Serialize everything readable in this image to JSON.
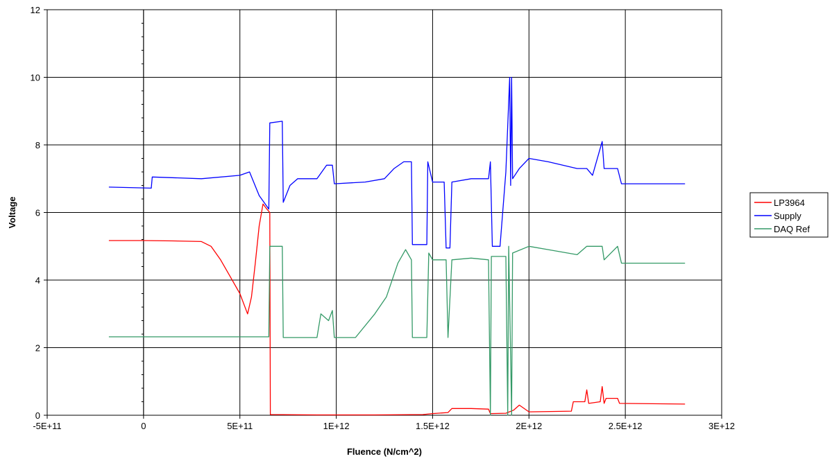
{
  "chart_data": {
    "type": "line",
    "title": "",
    "xlabel": "Fluence (N/cm^2)",
    "ylabel": "Voltage",
    "xlim": [
      -500000000000,
      3000000000000
    ],
    "ylim": [
      0,
      12
    ],
    "x_ticks": [
      -500000000000,
      0,
      500000000000,
      1000000000000,
      1500000000000,
      2000000000000,
      2500000000000,
      3000000000000
    ],
    "x_tick_labels": [
      "-5E+11",
      "0",
      "5E+11",
      "1E+12",
      "1.5E+12",
      "2E+12",
      "2.5E+12",
      "3E+12"
    ],
    "y_ticks": [
      0,
      2,
      4,
      6,
      8,
      10,
      12
    ],
    "y_tick_labels": [
      "0",
      "2",
      "4",
      "6",
      "8",
      "10",
      "12"
    ],
    "grid": true,
    "legend_position": "right",
    "series": [
      {
        "name": "LP3964",
        "color": "#ff0000",
        "points": [
          [
            -180000000000,
            5.17
          ],
          [
            0,
            5.17
          ],
          [
            150000000000,
            5.16
          ],
          [
            300000000000,
            5.14
          ],
          [
            350000000000,
            5.0
          ],
          [
            400000000000,
            4.6
          ],
          [
            450000000000,
            4.1
          ],
          [
            500000000000,
            3.6
          ],
          [
            540000000000,
            3.0
          ],
          [
            560000000000,
            3.5
          ],
          [
            580000000000,
            4.5
          ],
          [
            600000000000,
            5.6
          ],
          [
            620000000000,
            6.25
          ],
          [
            640000000000,
            6.1
          ],
          [
            655000000000,
            6.0
          ],
          [
            658000000000,
            0.02
          ],
          [
            900000000000,
            0.01
          ],
          [
            1200000000000,
            0.01
          ],
          [
            1450000000000,
            0.02
          ],
          [
            1500000000000,
            0.05
          ],
          [
            1580000000000,
            0.08
          ],
          [
            1600000000000,
            0.2
          ],
          [
            1700000000000,
            0.2
          ],
          [
            1790000000000,
            0.18
          ],
          [
            1800000000000,
            0.05
          ],
          [
            1880000000000,
            0.06
          ],
          [
            1920000000000,
            0.15
          ],
          [
            1950000000000,
            0.3
          ],
          [
            2000000000000,
            0.1
          ],
          [
            2220000000000,
            0.12
          ],
          [
            2230000000000,
            0.4
          ],
          [
            2290000000000,
            0.4
          ],
          [
            2300000000000,
            0.75
          ],
          [
            2310000000000,
            0.35
          ],
          [
            2370000000000,
            0.4
          ],
          [
            2380000000000,
            0.85
          ],
          [
            2390000000000,
            0.35
          ],
          [
            2400000000000,
            0.5
          ],
          [
            2460000000000,
            0.5
          ],
          [
            2470000000000,
            0.35
          ],
          [
            2810000000000,
            0.33
          ]
        ]
      },
      {
        "name": "Supply",
        "color": "#0000ff",
        "points": [
          [
            -180000000000,
            6.75
          ],
          [
            40000000000,
            6.72
          ],
          [
            45000000000,
            7.05
          ],
          [
            300000000000,
            7.0
          ],
          [
            500000000000,
            7.1
          ],
          [
            550000000000,
            7.2
          ],
          [
            600000000000,
            6.5
          ],
          [
            650000000000,
            6.1
          ],
          [
            655000000000,
            8.65
          ],
          [
            720000000000,
            8.7
          ],
          [
            725000000000,
            6.3
          ],
          [
            760000000000,
            6.8
          ],
          [
            800000000000,
            7.0
          ],
          [
            900000000000,
            7.0
          ],
          [
            950000000000,
            7.4
          ],
          [
            980000000000,
            7.4
          ],
          [
            990000000000,
            6.85
          ],
          [
            1150000000000,
            6.9
          ],
          [
            1250000000000,
            7.0
          ],
          [
            1300000000000,
            7.3
          ],
          [
            1350000000000,
            7.5
          ],
          [
            1390000000000,
            7.5
          ],
          [
            1395000000000,
            5.05
          ],
          [
            1470000000000,
            5.05
          ],
          [
            1475000000000,
            7.5
          ],
          [
            1500000000000,
            6.9
          ],
          [
            1560000000000,
            6.9
          ],
          [
            1570000000000,
            4.95
          ],
          [
            1590000000000,
            4.95
          ],
          [
            1600000000000,
            6.9
          ],
          [
            1700000000000,
            7.0
          ],
          [
            1790000000000,
            7.0
          ],
          [
            1800000000000,
            7.5
          ],
          [
            1810000000000,
            5.0
          ],
          [
            1850000000000,
            5.0
          ],
          [
            1880000000000,
            7.2
          ],
          [
            1900000000000,
            10.0
          ],
          [
            1905000000000,
            6.8
          ],
          [
            1910000000000,
            10.0
          ],
          [
            1915000000000,
            7.0
          ],
          [
            1950000000000,
            7.3
          ],
          [
            2000000000000,
            7.6
          ],
          [
            2100000000000,
            7.5
          ],
          [
            2250000000000,
            7.3
          ],
          [
            2300000000000,
            7.3
          ],
          [
            2330000000000,
            7.1
          ],
          [
            2380000000000,
            8.1
          ],
          [
            2390000000000,
            7.3
          ],
          [
            2460000000000,
            7.3
          ],
          [
            2480000000000,
            6.85
          ],
          [
            2810000000000,
            6.85
          ]
        ]
      },
      {
        "name": "DAQ Ref",
        "color": "#339966",
        "points": [
          [
            -180000000000,
            2.32
          ],
          [
            650000000000,
            2.32
          ],
          [
            655000000000,
            5.0
          ],
          [
            720000000000,
            5.0
          ],
          [
            725000000000,
            2.3
          ],
          [
            900000000000,
            2.3
          ],
          [
            920000000000,
            3.0
          ],
          [
            960000000000,
            2.8
          ],
          [
            980000000000,
            3.1
          ],
          [
            990000000000,
            2.3
          ],
          [
            1100000000000,
            2.3
          ],
          [
            1200000000000,
            3.0
          ],
          [
            1260000000000,
            3.5
          ],
          [
            1320000000000,
            4.5
          ],
          [
            1360000000000,
            4.9
          ],
          [
            1370000000000,
            4.8
          ],
          [
            1390000000000,
            4.6
          ],
          [
            1395000000000,
            2.3
          ],
          [
            1470000000000,
            2.3
          ],
          [
            1480000000000,
            4.8
          ],
          [
            1500000000000,
            4.6
          ],
          [
            1570000000000,
            4.6
          ],
          [
            1580000000000,
            2.3
          ],
          [
            1600000000000,
            4.6
          ],
          [
            1700000000000,
            4.65
          ],
          [
            1790000000000,
            4.6
          ],
          [
            1800000000000,
            0.0
          ],
          [
            1805000000000,
            4.7
          ],
          [
            1880000000000,
            4.7
          ],
          [
            1890000000000,
            0.0
          ],
          [
            1895000000000,
            5.0
          ],
          [
            1910000000000,
            0.0
          ],
          [
            1915000000000,
            4.8
          ],
          [
            2000000000000,
            5.0
          ],
          [
            2100000000000,
            4.9
          ],
          [
            2250000000000,
            4.75
          ],
          [
            2300000000000,
            5.0
          ],
          [
            2380000000000,
            5.0
          ],
          [
            2390000000000,
            4.6
          ],
          [
            2460000000000,
            5.0
          ],
          [
            2480000000000,
            4.5
          ],
          [
            2810000000000,
            4.5
          ]
        ]
      }
    ]
  }
}
